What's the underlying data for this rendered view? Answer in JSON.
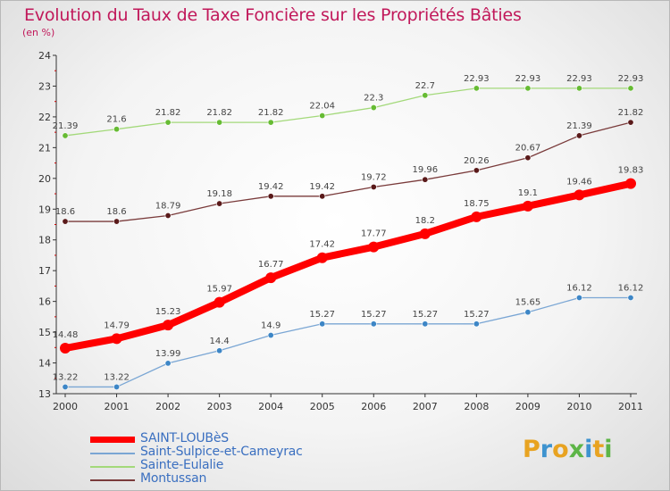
{
  "title": "Evolution du Taux de Taxe Foncière sur les Propriétés Bâties",
  "subtitle": "(en %)",
  "logo": {
    "text": "Proxiti",
    "colors": [
      "#e8a321",
      "#3e93cf",
      "#e8a321",
      "#5db547",
      "#3e93cf",
      "#e8a321",
      "#5db547"
    ]
  },
  "chart_data": {
    "type": "line",
    "title": "Evolution du Taux de Taxe Foncière sur les Propriétés Bâties",
    "ylabel": "(en %)",
    "xlabel": "",
    "ylim": [
      13,
      24
    ],
    "yticks": [
      13,
      14,
      15,
      16,
      17,
      18,
      19,
      20,
      21,
      22,
      23,
      24
    ],
    "categories": [
      "2000",
      "2001",
      "2002",
      "2003",
      "2004",
      "2005",
      "2006",
      "2007",
      "2008",
      "2009",
      "2010",
      "2011"
    ],
    "grid": false,
    "legend_position": "bottom-left",
    "series": [
      {
        "name": "SAINT-LOUBèS",
        "color": "#ff0000",
        "marker": "#ff0000",
        "width": 8,
        "radius": 6,
        "values": [
          14.48,
          14.79,
          15.23,
          15.97,
          16.77,
          17.42,
          17.77,
          18.2,
          18.75,
          19.1,
          19.46,
          19.83
        ],
        "labels": [
          "14.48",
          "14.79",
          "15.23",
          "15.97",
          "16.77",
          "17.42",
          "17.77",
          "18.2",
          "18.75",
          "19.1",
          "19.46",
          "19.83"
        ]
      },
      {
        "name": "Saint-Sulpice-et-Cameyrac",
        "color": "#7aa6d4",
        "marker": "#3d86c6",
        "width": 1.3,
        "radius": 3.2,
        "values": [
          13.22,
          13.22,
          13.99,
          14.4,
          14.9,
          15.27,
          15.27,
          15.27,
          15.27,
          15.65,
          16.12,
          16.12
        ],
        "labels": [
          "13.22",
          "13.22",
          "13.99",
          "14.4",
          "14.9",
          "15.27",
          "15.27",
          "15.27",
          "15.27",
          "15.65",
          "16.12",
          "16.12"
        ]
      },
      {
        "name": "Sainte-Eulalie",
        "color": "#a3d97a",
        "marker": "#66bb33",
        "width": 1.3,
        "radius": 3.2,
        "values": [
          21.39,
          21.6,
          21.82,
          21.82,
          21.82,
          22.04,
          22.3,
          22.7,
          22.93,
          22.93,
          22.93,
          22.93
        ],
        "labels": [
          "21.39",
          "21.6",
          "21.82",
          "21.82",
          "21.82",
          "22.04",
          "22.3",
          "22.7",
          "22.93",
          "22.93",
          "22.93",
          "22.93"
        ]
      },
      {
        "name": "Montussan",
        "color": "#7a3b3b",
        "marker": "#5a1a1a",
        "width": 1.3,
        "radius": 3.2,
        "values": [
          18.6,
          18.6,
          18.79,
          19.18,
          19.42,
          19.42,
          19.72,
          19.96,
          20.26,
          20.67,
          21.39,
          21.82
        ],
        "labels": [
          "18.6",
          "18.6",
          "18.79",
          "19.18",
          "19.42",
          "19.42",
          "19.72",
          "19.96",
          "20.26",
          "20.67",
          "21.39",
          "21.82"
        ]
      }
    ]
  }
}
